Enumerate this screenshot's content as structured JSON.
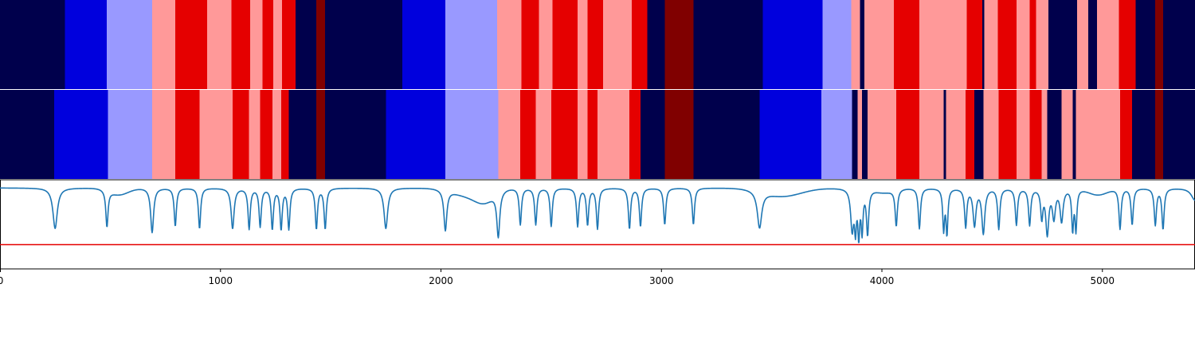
{
  "chart_data": {
    "type": "heatmap",
    "title": "",
    "xlabel": "",
    "ylabel": "",
    "xlim": [
      0,
      5420
    ],
    "x_ticks": [
      0,
      1000,
      2000,
      3000,
      4000,
      5000
    ],
    "x_tick_labels": [
      "0",
      "1000",
      "2000",
      "3000",
      "4000",
      "5000"
    ],
    "grid": false,
    "legend": "none",
    "colors": {
      "0": "#00004c",
      "1": "#0000dd",
      "2": "#9999ff",
      "3": "#ff9999",
      "4": "#e50000",
      "5": "#800000"
    },
    "line_color": "#1f77b4",
    "threshold_color": "#e50000",
    "rows": [
      {
        "segments": [
          [
            0,
            295,
            0
          ],
          [
            295,
            485,
            1
          ],
          [
            485,
            690,
            2
          ],
          [
            690,
            795,
            3
          ],
          [
            795,
            940,
            4
          ],
          [
            940,
            1050,
            3
          ],
          [
            1050,
            1135,
            4
          ],
          [
            1135,
            1190,
            3
          ],
          [
            1190,
            1240,
            4
          ],
          [
            1240,
            1280,
            3
          ],
          [
            1280,
            1340,
            4
          ],
          [
            1340,
            1435,
            0
          ],
          [
            1435,
            1475,
            5
          ],
          [
            1475,
            1825,
            0
          ],
          [
            1825,
            2020,
            1
          ],
          [
            2020,
            2255,
            2
          ],
          [
            2255,
            2365,
            3
          ],
          [
            2365,
            2445,
            4
          ],
          [
            2445,
            2505,
            3
          ],
          [
            2505,
            2620,
            4
          ],
          [
            2620,
            2665,
            3
          ],
          [
            2665,
            2735,
            4
          ],
          [
            2735,
            2865,
            3
          ],
          [
            2865,
            2935,
            4
          ],
          [
            2935,
            3015,
            0
          ],
          [
            3015,
            3145,
            5
          ],
          [
            3145,
            3460,
            0
          ],
          [
            3460,
            3730,
            1
          ],
          [
            3730,
            3860,
            2
          ],
          [
            3860,
            3900,
            3
          ],
          [
            3900,
            3920,
            0
          ],
          [
            3920,
            4055,
            3
          ],
          [
            4055,
            4170,
            4
          ],
          [
            4170,
            4385,
            3
          ],
          [
            4385,
            4455,
            4
          ],
          [
            4455,
            4465,
            0
          ],
          [
            4465,
            4525,
            3
          ],
          [
            4525,
            4610,
            4
          ],
          [
            4610,
            4670,
            3
          ],
          [
            4670,
            4700,
            4
          ],
          [
            4700,
            4755,
            3
          ],
          [
            4755,
            4885,
            0
          ],
          [
            4885,
            4935,
            3
          ],
          [
            4935,
            4975,
            0
          ],
          [
            4975,
            5075,
            3
          ],
          [
            5075,
            5150,
            4
          ],
          [
            5150,
            5240,
            0
          ],
          [
            5240,
            5275,
            5
          ],
          [
            5275,
            5420,
            0
          ]
        ]
      },
      {
        "segments": [
          [
            0,
            245,
            0
          ],
          [
            245,
            490,
            1
          ],
          [
            490,
            690,
            2
          ],
          [
            690,
            795,
            3
          ],
          [
            795,
            905,
            4
          ],
          [
            905,
            1055,
            3
          ],
          [
            1055,
            1130,
            4
          ],
          [
            1130,
            1180,
            3
          ],
          [
            1180,
            1235,
            4
          ],
          [
            1235,
            1275,
            3
          ],
          [
            1275,
            1310,
            4
          ],
          [
            1310,
            1435,
            0
          ],
          [
            1435,
            1475,
            5
          ],
          [
            1475,
            1750,
            0
          ],
          [
            1750,
            2020,
            1
          ],
          [
            2020,
            2260,
            2
          ],
          [
            2260,
            2360,
            3
          ],
          [
            2360,
            2430,
            4
          ],
          [
            2430,
            2500,
            3
          ],
          [
            2500,
            2620,
            4
          ],
          [
            2620,
            2665,
            3
          ],
          [
            2665,
            2710,
            4
          ],
          [
            2710,
            2855,
            3
          ],
          [
            2855,
            2905,
            4
          ],
          [
            2905,
            3015,
            0
          ],
          [
            3015,
            3145,
            5
          ],
          [
            3145,
            3445,
            0
          ],
          [
            3445,
            3725,
            1
          ],
          [
            3725,
            3865,
            2
          ],
          [
            3865,
            3890,
            0
          ],
          [
            3890,
            3910,
            3
          ],
          [
            3910,
            3935,
            0
          ],
          [
            3935,
            4065,
            3
          ],
          [
            4065,
            4170,
            4
          ],
          [
            4170,
            4280,
            3
          ],
          [
            4280,
            4290,
            0
          ],
          [
            4290,
            4380,
            3
          ],
          [
            4380,
            4420,
            4
          ],
          [
            4420,
            4460,
            0
          ],
          [
            4460,
            4530,
            3
          ],
          [
            4530,
            4610,
            4
          ],
          [
            4610,
            4670,
            3
          ],
          [
            4670,
            4725,
            4
          ],
          [
            4725,
            4750,
            3
          ],
          [
            4750,
            4815,
            0
          ],
          [
            4815,
            4865,
            3
          ],
          [
            4865,
            4880,
            0
          ],
          [
            4880,
            5080,
            3
          ],
          [
            5080,
            5135,
            4
          ],
          [
            5135,
            5240,
            0
          ],
          [
            5240,
            5275,
            5
          ],
          [
            5275,
            5420,
            0
          ]
        ]
      }
    ],
    "line": {
      "ylim": [
        -1.0,
        0.1
      ],
      "baseline": 0.0,
      "threshold": -0.7,
      "dips": [
        [
          250,
          0.5,
          12
        ],
        [
          485,
          0.45,
          6
        ],
        [
          690,
          0.55,
          8
        ],
        [
          795,
          0.47,
          6
        ],
        [
          905,
          0.5,
          6
        ],
        [
          1055,
          0.5,
          8
        ],
        [
          1130,
          0.5,
          6
        ],
        [
          1180,
          0.47,
          6
        ],
        [
          1235,
          0.5,
          6
        ],
        [
          1275,
          0.5,
          6
        ],
        [
          1310,
          0.5,
          6
        ],
        [
          1435,
          0.5,
          6
        ],
        [
          1475,
          0.5,
          6
        ],
        [
          1750,
          0.5,
          10
        ],
        [
          2020,
          0.5,
          8
        ],
        [
          2260,
          0.55,
          8
        ],
        [
          2360,
          0.45,
          6
        ],
        [
          2430,
          0.45,
          6
        ],
        [
          2500,
          0.47,
          6
        ],
        [
          2620,
          0.47,
          6
        ],
        [
          2665,
          0.45,
          6
        ],
        [
          2710,
          0.5,
          6
        ],
        [
          2855,
          0.5,
          6
        ],
        [
          2905,
          0.47,
          6
        ],
        [
          3015,
          0.45,
          6
        ],
        [
          3145,
          0.45,
          6
        ],
        [
          3445,
          0.45,
          12
        ],
        [
          3865,
          0.5,
          8
        ],
        [
          3880,
          0.45,
          5
        ],
        [
          3895,
          0.55,
          5
        ],
        [
          3910,
          0.5,
          5
        ],
        [
          3935,
          0.55,
          6
        ],
        [
          4065,
          0.45,
          6
        ],
        [
          4170,
          0.5,
          6
        ],
        [
          4280,
          0.5,
          5
        ],
        [
          4295,
          0.55,
          5
        ],
        [
          4380,
          0.47,
          6
        ],
        [
          4420,
          0.45,
          8
        ],
        [
          4460,
          0.55,
          8
        ],
        [
          4530,
          0.5,
          6
        ],
        [
          4610,
          0.45,
          6
        ],
        [
          4670,
          0.45,
          6
        ],
        [
          4725,
          0.35,
          6
        ],
        [
          4750,
          0.55,
          8
        ],
        [
          4780,
          0.35,
          8
        ],
        [
          4815,
          0.4,
          8
        ],
        [
          4865,
          0.5,
          5
        ],
        [
          4880,
          0.5,
          5
        ],
        [
          5080,
          0.5,
          6
        ],
        [
          5135,
          0.45,
          6
        ],
        [
          5240,
          0.45,
          6
        ],
        [
          5275,
          0.5,
          6
        ],
        [
          5420,
          0.15,
          20
        ]
      ],
      "bumps": [
        [
          540,
          0.08,
          60
        ],
        [
          2130,
          0.1,
          100
        ],
        [
          2200,
          0.12,
          60
        ],
        [
          3550,
          0.1,
          120
        ],
        [
          4010,
          0.05,
          60
        ],
        [
          4980,
          0.08,
          60
        ]
      ]
    }
  }
}
